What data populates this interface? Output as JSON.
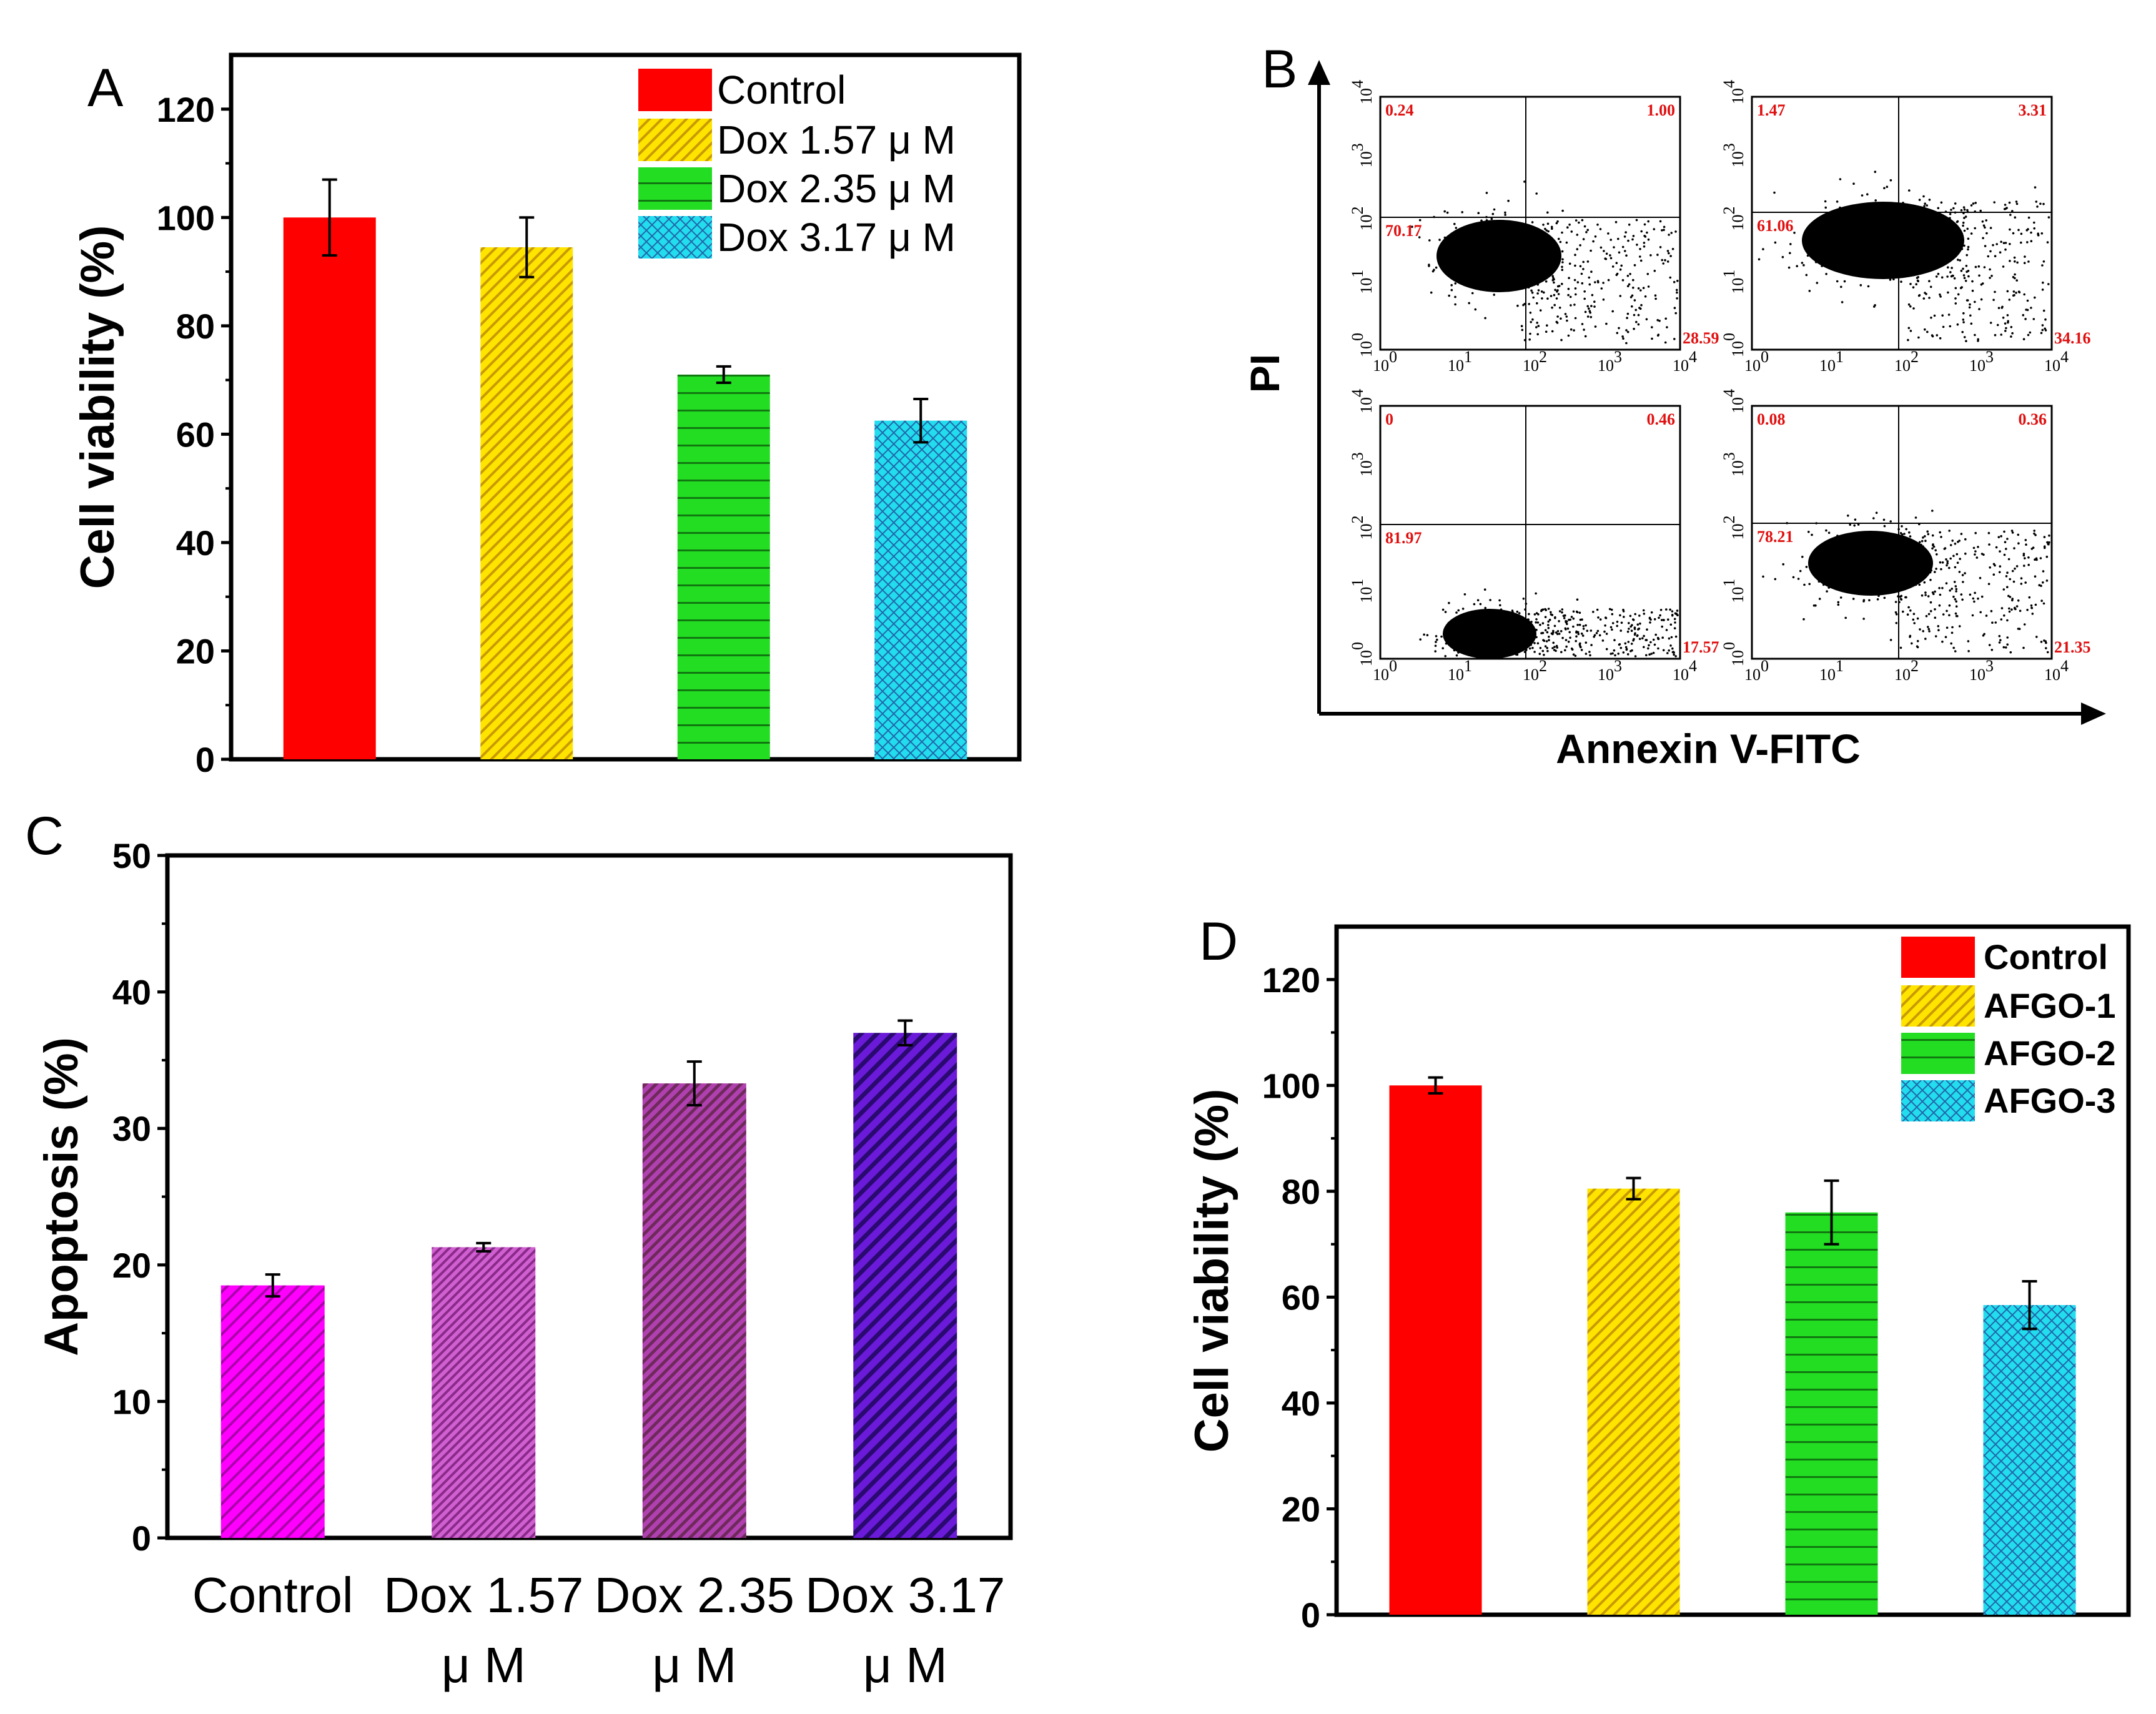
{
  "chart_data": [
    {
      "panel": "A",
      "type": "bar",
      "ylabel": "Cell viability (%)",
      "ylim": [
        0,
        130
      ],
      "yticks": [
        "0",
        "20",
        "40",
        "60",
        "80",
        "100",
        "120"
      ],
      "legend_position": "top-right",
      "series": [
        {
          "name": "Control",
          "value": 100,
          "error": 7,
          "color": "#ff0000",
          "pattern": "solid"
        },
        {
          "name": "Dox 1.57 μ M",
          "value": 94.5,
          "error": 5.5,
          "color": "#ffe400",
          "pattern": "diagonal"
        },
        {
          "name": "Dox 2.35 μ M",
          "value": 71,
          "error": 1.5,
          "color": "#22dd22",
          "pattern": "horizontal"
        },
        {
          "name": "Dox 3.17 μ M",
          "value": 62.5,
          "error": 4,
          "color": "#22ddee",
          "pattern": "crosshatch"
        }
      ]
    },
    {
      "panel": "B",
      "type": "scatter",
      "xlabel": "Annexin V-FITC",
      "ylabel": "PI",
      "axis_ticks": [
        "10",
        "0",
        "10",
        "1",
        "10",
        "2",
        "10",
        "3",
        "10",
        "4"
      ],
      "tick_base": "10",
      "tick_exponents": [
        "0",
        "1",
        "2",
        "3",
        "4"
      ],
      "plots": [
        {
          "quadrants": [
            "0.24",
            "1.00",
            "70.17",
            "28.59"
          ]
        },
        {
          "quadrants": [
            "1.47",
            "3.31",
            "61.06",
            "34.16"
          ]
        },
        {
          "quadrants": [
            "0",
            "0.46",
            "81.97",
            "17.57"
          ]
        },
        {
          "quadrants": [
            "0.08",
            "0.36",
            "78.21",
            "21.35"
          ]
        }
      ]
    },
    {
      "panel": "C",
      "type": "bar",
      "ylabel": "Apoptosis (%)",
      "ylim": [
        0,
        50
      ],
      "yticks": [
        "0",
        "10",
        "20",
        "30",
        "40",
        "50"
      ],
      "categories": [
        {
          "line1": "Control",
          "line2": ""
        },
        {
          "line1": "Dox 1.57",
          "line2": "μ M"
        },
        {
          "line1": "Dox 2.35",
          "line2": "μ M"
        },
        {
          "line1": "Dox 3.17",
          "line2": "μ M"
        }
      ],
      "values": [
        18.5,
        21.3,
        33.3,
        37
      ],
      "errors": [
        0.8,
        0.3,
        1.6,
        0.9
      ],
      "colors": [
        "#ff00ff",
        "#cc44cc",
        "#aa33aa",
        "#6a1ad8"
      ]
    },
    {
      "panel": "D",
      "type": "bar",
      "ylabel": "Cell viability (%)",
      "ylim": [
        0,
        130
      ],
      "yticks": [
        "0",
        "20",
        "40",
        "60",
        "80",
        "100",
        "120"
      ],
      "legend_position": "top-right",
      "series": [
        {
          "name": "Control",
          "value": 100,
          "error": 1.5,
          "color": "#ff0000",
          "pattern": "solid"
        },
        {
          "name": "AFGO-1",
          "value": 80.5,
          "error": 2,
          "color": "#ffe400",
          "pattern": "diagonal"
        },
        {
          "name": "AFGO-2",
          "value": 76,
          "error": 6,
          "color": "#22dd22",
          "pattern": "horizontal"
        },
        {
          "name": "AFGO-3",
          "value": 58.5,
          "error": 4.5,
          "color": "#22ddee",
          "pattern": "crosshatch"
        }
      ]
    }
  ]
}
